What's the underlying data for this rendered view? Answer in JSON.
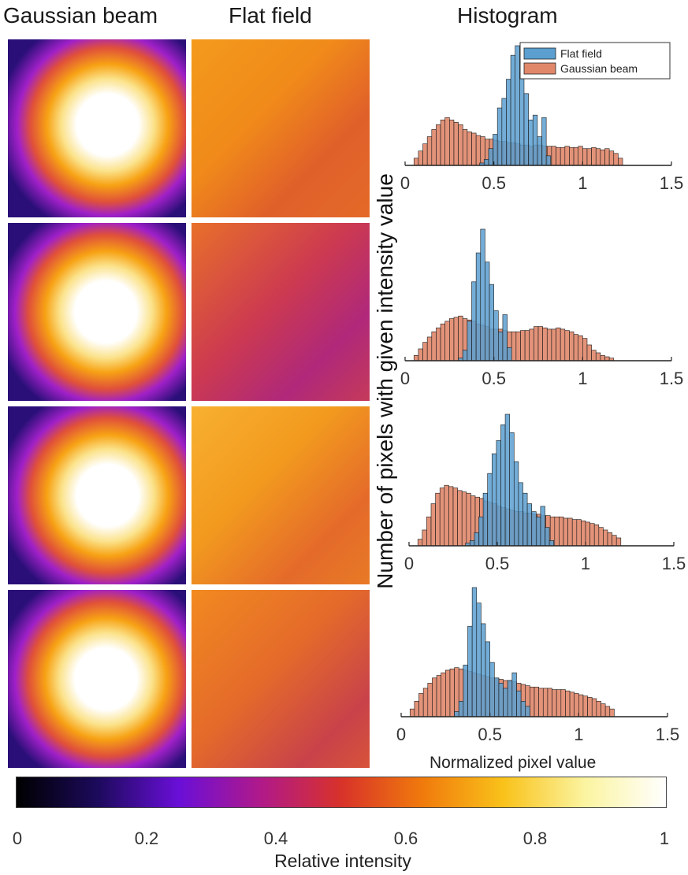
{
  "column_titles": {
    "gaussian": "Gaussian beam",
    "flat": "Flat field",
    "histogram": "Histogram"
  },
  "y_axis_label": "Number of pixels with given intensity value",
  "x_axis_label": "Normalized pixel value",
  "colorbar": {
    "label": "Relative intensity",
    "ticks": [
      "0",
      "0.2",
      "0.4",
      "0.6",
      "0.8",
      "1"
    ],
    "colors": [
      "#000000",
      "#1c0a5c",
      "#6a0fd8",
      "#b0198a",
      "#d8322a",
      "#f07a0c",
      "#f9c21a",
      "#fbf4a0",
      "#ffffff"
    ]
  },
  "series_colors": {
    "flat": "#5a9fd0",
    "gaussian": "#e0876a"
  },
  "chart_data": [
    {
      "type": "bar",
      "xlim": [
        0,
        1.5
      ],
      "xticks": [
        "0",
        "0.5",
        "1",
        "1.5"
      ],
      "legend": {
        "placement": "top-right",
        "entries": [
          "Flat field",
          "Gaussian beam"
        ]
      },
      "series": [
        {
          "name": "Flat field",
          "bin_start": 0.42,
          "bin_width": 0.025,
          "values": [
            2,
            5,
            14,
            26,
            48,
            56,
            72,
            92,
            100,
            78,
            60,
            38,
            42,
            24,
            40,
            8
          ]
        },
        {
          "name": "Gaussian beam",
          "bin_start": 0.05,
          "bin_width": 0.025,
          "values": [
            6,
            12,
            18,
            24,
            30,
            34,
            38,
            40,
            38,
            36,
            34,
            30,
            28,
            27,
            25,
            24,
            22,
            22,
            21,
            20,
            20,
            19,
            19,
            18,
            17,
            17,
            16,
            17,
            17,
            16,
            16,
            16,
            15,
            15,
            16,
            15,
            15,
            16,
            14,
            14,
            15,
            14,
            13,
            14,
            12,
            10,
            6
          ]
        }
      ]
    },
    {
      "type": "bar",
      "xlim": [
        0,
        1.5
      ],
      "xticks": [
        "0",
        "0.5",
        "1",
        "1.5"
      ],
      "series": [
        {
          "name": "Flat field",
          "bin_start": 0.3,
          "bin_width": 0.025,
          "values": [
            2,
            8,
            30,
            60,
            82,
            100,
            75,
            58,
            38,
            22,
            35,
            10
          ]
        },
        {
          "name": "Gaussian beam",
          "bin_start": 0.05,
          "bin_width": 0.025,
          "values": [
            4,
            9,
            14,
            18,
            22,
            25,
            28,
            30,
            32,
            33,
            34,
            32,
            31,
            30,
            28,
            27,
            26,
            24,
            24,
            24,
            23,
            22,
            22,
            22,
            23,
            23,
            24,
            26,
            26,
            25,
            24,
            24,
            25,
            24,
            23,
            22,
            20,
            19,
            17,
            12,
            8,
            6,
            4,
            3,
            2
          ]
        }
      ]
    },
    {
      "type": "bar",
      "xlim": [
        0,
        1.5
      ],
      "xticks": [
        "0",
        "0.5",
        "1",
        "1.5"
      ],
      "series": [
        {
          "name": "Flat field",
          "bin_start": 0.32,
          "bin_width": 0.025,
          "values": [
            2,
            4,
            10,
            22,
            40,
            55,
            70,
            80,
            92,
            100,
            86,
            64,
            48,
            40,
            32,
            26,
            22,
            30,
            14,
            4
          ]
        },
        {
          "name": "Gaussian beam",
          "bin_start": 0.05,
          "bin_width": 0.025,
          "values": [
            5,
            12,
            22,
            32,
            40,
            44,
            46,
            45,
            44,
            42,
            41,
            40,
            38,
            37,
            36,
            34,
            33,
            32,
            30,
            29,
            28,
            27,
            26,
            26,
            25,
            25,
            24,
            24,
            23,
            23,
            22,
            22,
            22,
            21,
            21,
            20,
            20,
            19,
            18,
            17,
            16,
            14,
            12,
            10,
            8,
            6
          ]
        }
      ]
    },
    {
      "type": "bar",
      "xlim": [
        0,
        1.5
      ],
      "xticks": [
        "0",
        "0.5",
        "1",
        "1.5"
      ],
      "series": [
        {
          "name": "Flat field",
          "bin_start": 0.3,
          "bin_width": 0.025,
          "values": [
            4,
            12,
            40,
            70,
            100,
            88,
            72,
            58,
            42,
            30,
            26,
            22,
            28,
            34,
            20,
            12,
            8
          ]
        },
        {
          "name": "Gaussian beam",
          "bin_start": 0.05,
          "bin_width": 0.025,
          "values": [
            6,
            12,
            18,
            22,
            26,
            30,
            32,
            34,
            36,
            37,
            38,
            37,
            36,
            35,
            34,
            33,
            32,
            31,
            30,
            30,
            29,
            28,
            28,
            27,
            26,
            25,
            24,
            23,
            23,
            22,
            22,
            22,
            21,
            21,
            21,
            20,
            19,
            18,
            17,
            16,
            15,
            14,
            12,
            10,
            8,
            6
          ]
        }
      ]
    }
  ]
}
